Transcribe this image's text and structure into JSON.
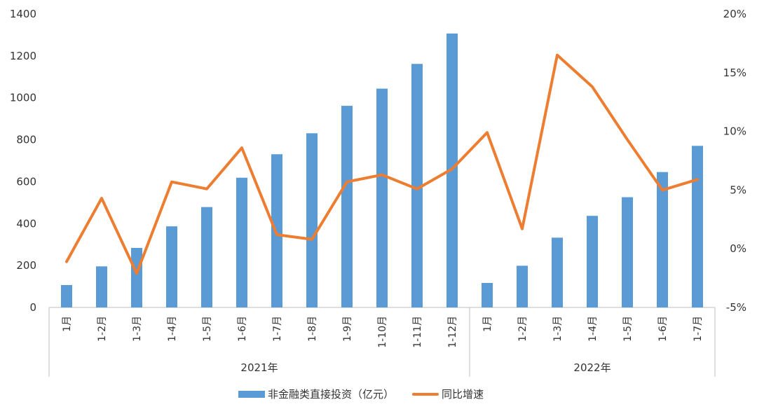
{
  "chart_data": {
    "type": "bar",
    "title": "",
    "categories": [
      "1月",
      "1-2月",
      "1-3月",
      "1-4月",
      "1-5月",
      "1-6月",
      "1-7月",
      "1-8月",
      "1-9月",
      "1-10月",
      "1-11月",
      "1-12月",
      "1月",
      "1-2月",
      "1-3月",
      "1-4月",
      "1-5月",
      "1-6月",
      "1-7月"
    ],
    "groups": [
      {
        "label": "2021年",
        "count": 12
      },
      {
        "label": "2022年",
        "count": 7
      }
    ],
    "series": [
      {
        "name": "非金融类直接投资（亿元）",
        "type": "bar",
        "axis": "left",
        "color": "#5b9bd5",
        "values": [
          107,
          196,
          284,
          387,
          479,
          619,
          731,
          831,
          962,
          1044,
          1162,
          1307,
          117,
          199,
          333,
          437,
          526,
          646,
          771
        ]
      },
      {
        "name": "同比增速",
        "type": "line",
        "axis": "right",
        "color": "#ed7d31",
        "values": [
          -1.1,
          4.3,
          -2.1,
          5.7,
          5.1,
          8.6,
          1.2,
          0.8,
          5.7,
          6.3,
          5.1,
          6.8,
          9.9,
          1.7,
          16.5,
          13.8,
          9.3,
          5.0,
          5.9
        ]
      }
    ],
    "y_left": {
      "min": 0,
      "max": 1400,
      "ticks": [
        "0",
        "200",
        "400",
        "600",
        "800",
        "1000",
        "1200",
        "1400"
      ]
    },
    "y_right": {
      "min": -5,
      "max": 20,
      "ticks": [
        "-5%",
        "0%",
        "5%",
        "10%",
        "15%",
        "20%"
      ]
    },
    "grid": false,
    "legend_position": "bottom"
  }
}
